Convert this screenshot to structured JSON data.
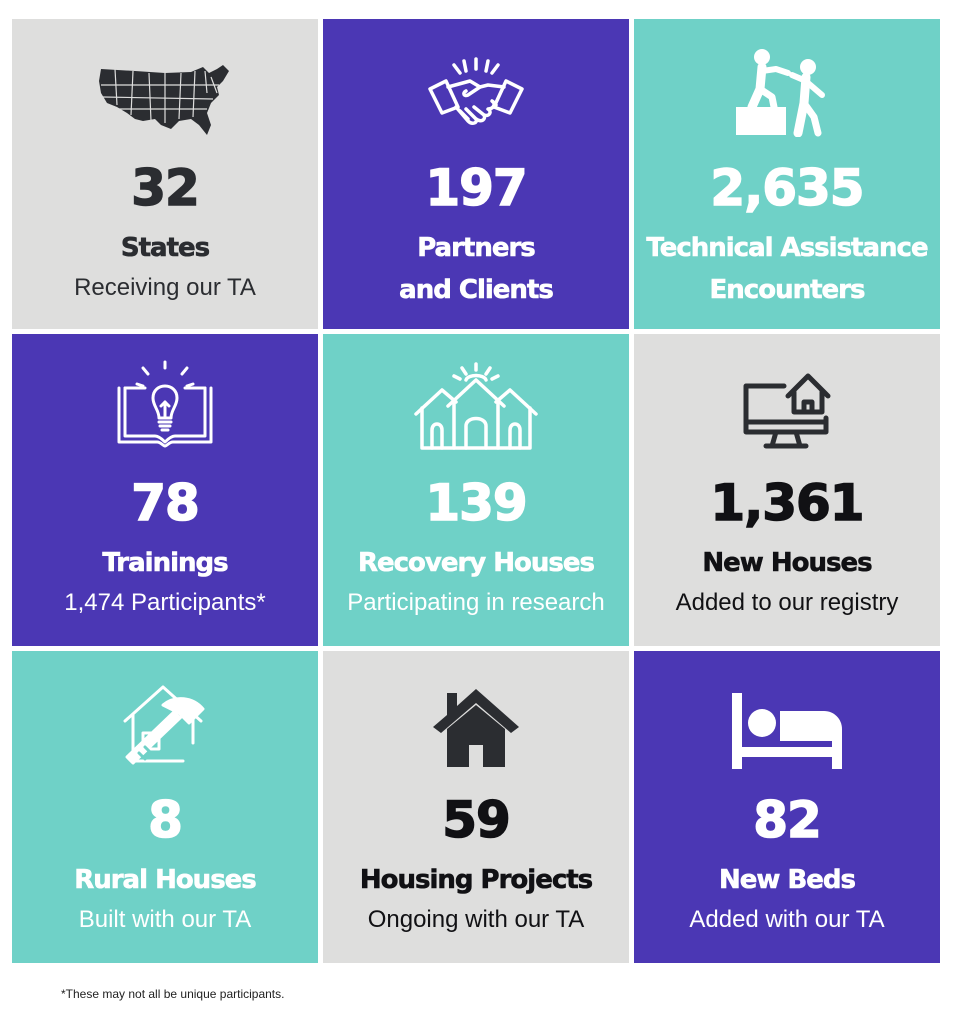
{
  "tiles": [
    {
      "number": "32",
      "title": "States",
      "subtitle": "Receiving our TA",
      "icon": "usa-map-icon"
    },
    {
      "number": "197",
      "title_line1": "Partners",
      "title_line2": "and Clients",
      "icon": "handshake-icon"
    },
    {
      "number": "2,635",
      "title_line1": "Technical Assistance",
      "title_line2": "Encounters",
      "icon": "helping-hand-climb-icon"
    },
    {
      "number": "78",
      "title": "Trainings",
      "subtitle": "1,474 Participants*",
      "icon": "lightbulb-book-icon"
    },
    {
      "number": "139",
      "title": "Recovery Houses",
      "subtitle": "Participating in research",
      "icon": "houses-sunrise-icon"
    },
    {
      "number": "1,361",
      "title": "New Houses",
      "subtitle": "Added to our registry",
      "icon": "computer-house-icon"
    },
    {
      "number": "8",
      "title": "Rural Houses",
      "subtitle": "Built with our TA",
      "icon": "house-hammer-icon"
    },
    {
      "number": "59",
      "title": "Housing Projects",
      "subtitle": "Ongoing with our TA",
      "icon": "house-icon"
    },
    {
      "number": "82",
      "title": "New Beds",
      "subtitle": "Added with our TA",
      "icon": "bed-icon"
    }
  ],
  "footnote": "*These may not all be unique participants.",
  "colors": {
    "gray": "#dededd",
    "purple": "#4b37b4",
    "teal": "#6fd1c7",
    "dark": "#2b2d31"
  }
}
